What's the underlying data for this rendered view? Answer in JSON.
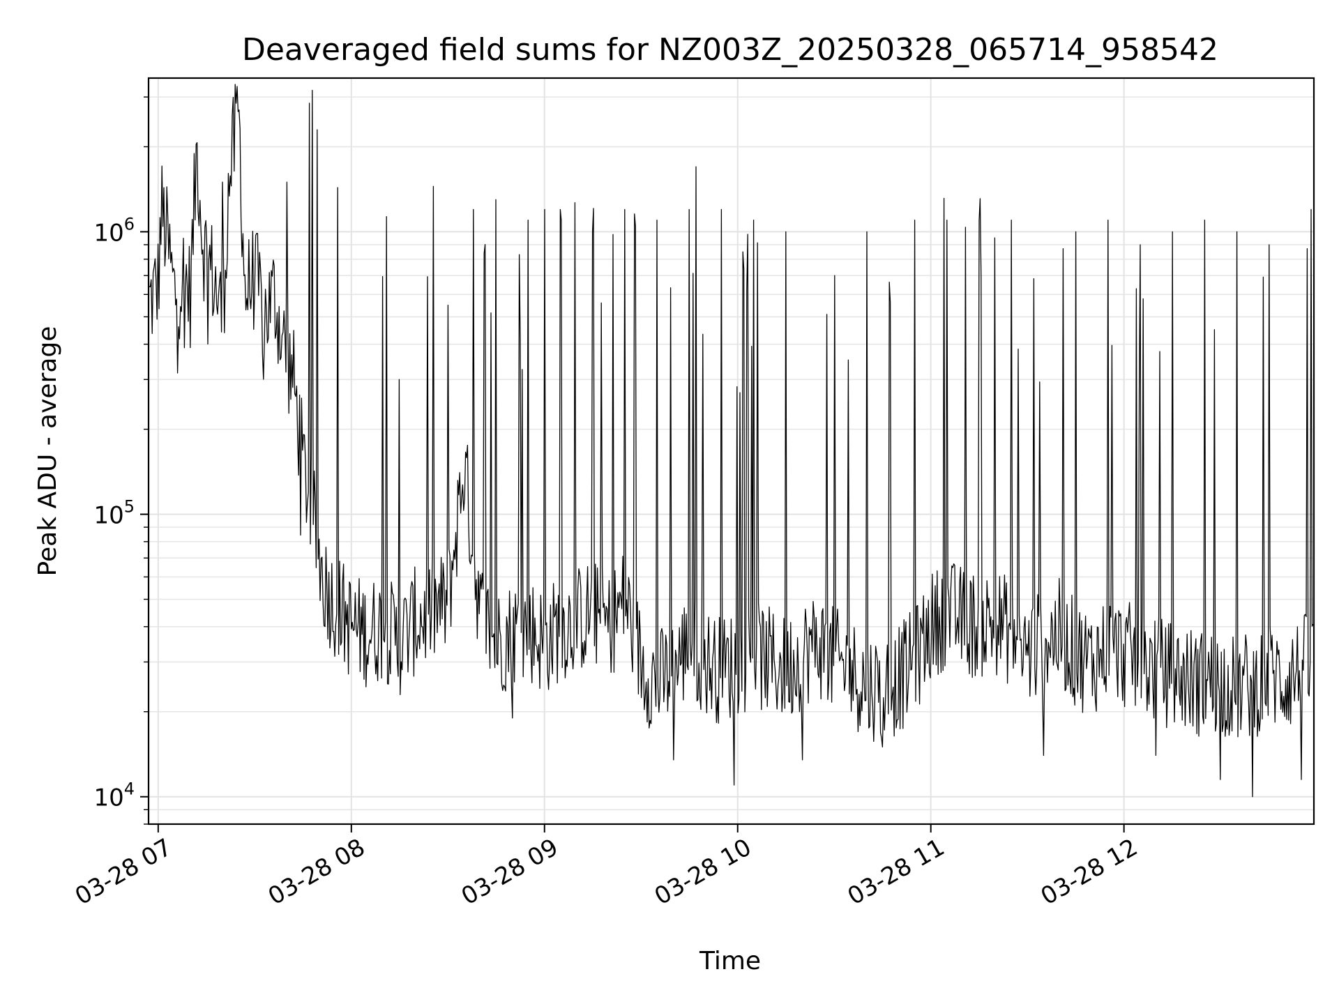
{
  "chart_data": {
    "type": "line",
    "title": "Deaveraged field sums for NZ003Z_20250328_065714_958542",
    "xlabel": "Time",
    "ylabel": "Peak ADU - average",
    "yscale": "log",
    "ylim": [
      8000,
      3500000
    ],
    "xlim": [
      "2025-03-28 06:57:00",
      "2025-03-28 12:59:00"
    ],
    "grid": true,
    "legend": "none",
    "line_color": "#000000",
    "x_ticks": [
      {
        "value": "2025-03-28 07:00",
        "label": "03-28 07"
      },
      {
        "value": "2025-03-28 08:00",
        "label": "03-28 08"
      },
      {
        "value": "2025-03-28 09:00",
        "label": "03-28 09"
      },
      {
        "value": "2025-03-28 10:00",
        "label": "03-28 10"
      },
      {
        "value": "2025-03-28 11:00",
        "label": "03-28 11"
      },
      {
        "value": "2025-03-28 12:00",
        "label": "03-28 12"
      }
    ],
    "y_ticks": [
      {
        "value": 10000,
        "base": "10",
        "exp": "4"
      },
      {
        "value": 100000,
        "base": "10",
        "exp": "5"
      },
      {
        "value": 1000000,
        "base": "10",
        "exp": "6"
      }
    ],
    "series": [
      {
        "values_note_free": true,
        "points": [
          [
            "2025-03-28 06:57",
            550000
          ],
          [
            "2025-03-28 07:00",
            650000
          ],
          [
            "2025-03-28 07:01",
            1200000
          ],
          [
            "2025-03-28 07:03",
            900000
          ],
          [
            "2025-03-28 07:05",
            600000
          ],
          [
            "2025-03-28 07:08",
            700000
          ],
          [
            "2025-03-28 07:10",
            600000
          ],
          [
            "2025-03-28 07:12",
            2000000
          ],
          [
            "2025-03-28 07:14",
            900000
          ],
          [
            "2025-03-28 07:17",
            700000
          ],
          [
            "2025-03-28 07:20",
            500000
          ],
          [
            "2025-03-28 07:22",
            1500000
          ],
          [
            "2025-03-28 07:25",
            2700000
          ],
          [
            "2025-03-28 07:27",
            600000
          ],
          [
            "2025-03-28 07:30",
            700000
          ],
          [
            "2025-03-28 07:33",
            500000
          ],
          [
            "2025-03-28 07:36",
            600000
          ],
          [
            "2025-03-28 07:39",
            400000
          ],
          [
            "2025-03-28 07:42",
            300000
          ],
          [
            "2025-03-28 07:45",
            150000
          ],
          [
            "2025-03-28 07:48",
            100000
          ],
          [
            "2025-03-28 07:51",
            60000
          ],
          [
            "2025-03-28 07:54",
            50000
          ],
          [
            "2025-03-28 07:57",
            45000
          ],
          [
            "2025-03-28 08:00",
            40000
          ],
          [
            "2025-03-28 08:05",
            38000
          ],
          [
            "2025-03-28 08:10",
            40000
          ],
          [
            "2025-03-28 08:15",
            35000
          ],
          [
            "2025-03-28 08:20",
            42000
          ],
          [
            "2025-03-28 08:25",
            45000
          ],
          [
            "2025-03-28 08:30",
            48000
          ],
          [
            "2025-03-28 08:35",
            150000
          ],
          [
            "2025-03-28 08:40",
            45000
          ],
          [
            "2025-03-28 08:45",
            35000
          ],
          [
            "2025-03-28 08:50",
            38000
          ],
          [
            "2025-03-28 08:55",
            40000
          ],
          [
            "2025-03-28 09:00",
            35000
          ],
          [
            "2025-03-28 09:05",
            40000
          ],
          [
            "2025-03-28 09:10",
            42000
          ],
          [
            "2025-03-28 09:15",
            45000
          ],
          [
            "2025-03-28 09:20",
            40000
          ],
          [
            "2025-03-28 09:25",
            50000
          ],
          [
            "2025-03-28 09:30",
            30000
          ],
          [
            "2025-03-28 09:35",
            25000
          ],
          [
            "2025-03-28 09:40",
            28000
          ],
          [
            "2025-03-28 09:45",
            35000
          ],
          [
            "2025-03-28 09:50",
            30000
          ],
          [
            "2025-03-28 09:55",
            28000
          ],
          [
            "2025-03-28 10:00",
            30000
          ],
          [
            "2025-03-28 10:05",
            32000
          ],
          [
            "2025-03-28 10:10",
            30000
          ],
          [
            "2025-03-28 10:15",
            28000
          ],
          [
            "2025-03-28 10:20",
            32000
          ],
          [
            "2025-03-28 10:25",
            35000
          ],
          [
            "2025-03-28 10:30",
            30000
          ],
          [
            "2025-03-28 10:35",
            28000
          ],
          [
            "2025-03-28 10:40",
            25000
          ],
          [
            "2025-03-28 10:45",
            24000
          ],
          [
            "2025-03-28 10:50",
            26000
          ],
          [
            "2025-03-28 10:55",
            30000
          ],
          [
            "2025-03-28 11:00",
            40000
          ],
          [
            "2025-03-28 11:05",
            45000
          ],
          [
            "2025-03-28 11:10",
            42000
          ],
          [
            "2025-03-28 11:15",
            40000
          ],
          [
            "2025-03-28 11:20",
            42000
          ],
          [
            "2025-03-28 11:25",
            38000
          ],
          [
            "2025-03-28 11:30",
            32000
          ],
          [
            "2025-03-28 11:35",
            35000
          ],
          [
            "2025-03-28 11:40",
            38000
          ],
          [
            "2025-03-28 11:45",
            32000
          ],
          [
            "2025-03-28 11:50",
            30000
          ],
          [
            "2025-03-28 11:55",
            34000
          ],
          [
            "2025-03-28 12:00",
            32000
          ],
          [
            "2025-03-28 12:05",
            30000
          ],
          [
            "2025-03-28 12:10",
            28000
          ],
          [
            "2025-03-28 12:15",
            27000
          ],
          [
            "2025-03-28 12:20",
            26000
          ],
          [
            "2025-03-28 12:25",
            25000
          ],
          [
            "2025-03-28 12:30",
            26000
          ],
          [
            "2025-03-28 12:35",
            24000
          ],
          [
            "2025-03-28 12:40",
            25000
          ],
          [
            "2025-03-28 12:45",
            27000
          ],
          [
            "2025-03-28 12:50",
            26000
          ],
          [
            "2025-03-28 12:55",
            28000
          ],
          [
            "2025-03-28 12:59",
            30000
          ]
        ],
        "spikes": [
          [
            "2025-03-28 07:20",
            1500000
          ],
          [
            "2025-03-28 07:25",
            2700000
          ],
          [
            "2025-03-28 07:40",
            1500000
          ],
          [
            "2025-03-28 08:15",
            300000
          ],
          [
            "2025-03-28 08:30",
            550000
          ],
          [
            "2025-03-28 08:38",
            1200000
          ],
          [
            "2025-03-28 08:45",
            1300000
          ],
          [
            "2025-03-28 08:55",
            1100000
          ],
          [
            "2025-03-28 09:00",
            1200000
          ],
          [
            "2025-03-28 09:05",
            1200000
          ],
          [
            "2025-03-28 09:15",
            1000000
          ],
          [
            "2025-03-28 09:25",
            1200000
          ],
          [
            "2025-03-28 09:35",
            1100000
          ],
          [
            "2025-03-28 09:45",
            1200000
          ],
          [
            "2025-03-28 09:47",
            1700000
          ],
          [
            "2025-03-28 09:55",
            1200000
          ],
          [
            "2025-03-28 10:05",
            1100000
          ],
          [
            "2025-03-28 10:15",
            1000000
          ],
          [
            "2025-03-28 10:30",
            700000
          ],
          [
            "2025-03-28 10:40",
            1000000
          ],
          [
            "2025-03-28 10:55",
            1100000
          ],
          [
            "2025-03-28 11:05",
            1100000
          ],
          [
            "2025-03-28 11:15",
            1100000
          ],
          [
            "2025-03-28 11:25",
            1100000
          ],
          [
            "2025-03-28 11:35",
            1200000
          ],
          [
            "2025-03-28 11:45",
            1000000
          ],
          [
            "2025-03-28 11:55",
            1100000
          ],
          [
            "2025-03-28 12:05",
            900000
          ],
          [
            "2025-03-28 12:15",
            1000000
          ],
          [
            "2025-03-28 12:25",
            1100000
          ],
          [
            "2025-03-28 12:35",
            1000000
          ],
          [
            "2025-03-28 12:45",
            900000
          ],
          [
            "2025-03-28 12:58",
            1200000
          ]
        ],
        "dips": [
          [
            "2025-03-28 08:50",
            19000
          ],
          [
            "2025-03-28 09:40",
            13500
          ],
          [
            "2025-03-28 09:59",
            11000
          ],
          [
            "2025-03-28 10:20",
            13500
          ],
          [
            "2025-03-28 10:45",
            15000
          ],
          [
            "2025-03-28 11:35",
            14000
          ],
          [
            "2025-03-28 12:10",
            14000
          ],
          [
            "2025-03-28 12:30",
            11500
          ],
          [
            "2025-03-28 12:40",
            10000
          ],
          [
            "2025-03-28 12:55",
            11500
          ]
        ]
      }
    ]
  }
}
